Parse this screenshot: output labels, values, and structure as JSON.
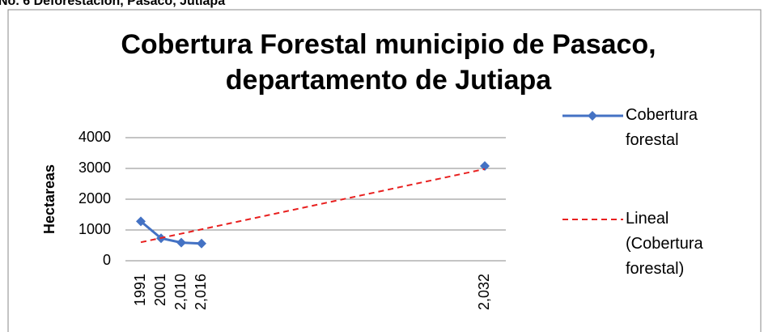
{
  "caption": "No. 6 Deforestación, Pasaco, Jutiapa",
  "chart_data": {
    "type": "line",
    "title": "Cobertura Forestal municipio de Pasaco, departamento de Jutiapa",
    "y_label": "Hectareas",
    "categories": [
      "1991",
      "2001",
      "2,010",
      "2,016",
      null,
      null,
      null,
      null,
      null,
      null,
      null,
      null,
      null,
      null,
      null,
      null,
      null,
      "2,032"
    ],
    "series": [
      {
        "name": "Cobertura forestal",
        "color": "#4472c4",
        "values": [
          1280,
          730,
          590,
          560,
          null,
          null,
          null,
          null,
          null,
          null,
          null,
          null,
          null,
          null,
          null,
          null,
          null,
          3080
        ]
      },
      {
        "name": "Lineal (Cobertura forestal)",
        "color": "#e8201f",
        "dashed": true,
        "values": [
          600,
          740,
          880,
          1020,
          1160,
          1300,
          1440,
          1580,
          1720,
          1860,
          2000,
          2140,
          2280,
          2420,
          2560,
          2700,
          2840,
          2980
        ]
      }
    ],
    "ylim": [
      0,
      4000
    ],
    "yticks": [
      0,
      1000,
      2000,
      3000,
      4000
    ],
    "grid": true,
    "legend": "right"
  }
}
